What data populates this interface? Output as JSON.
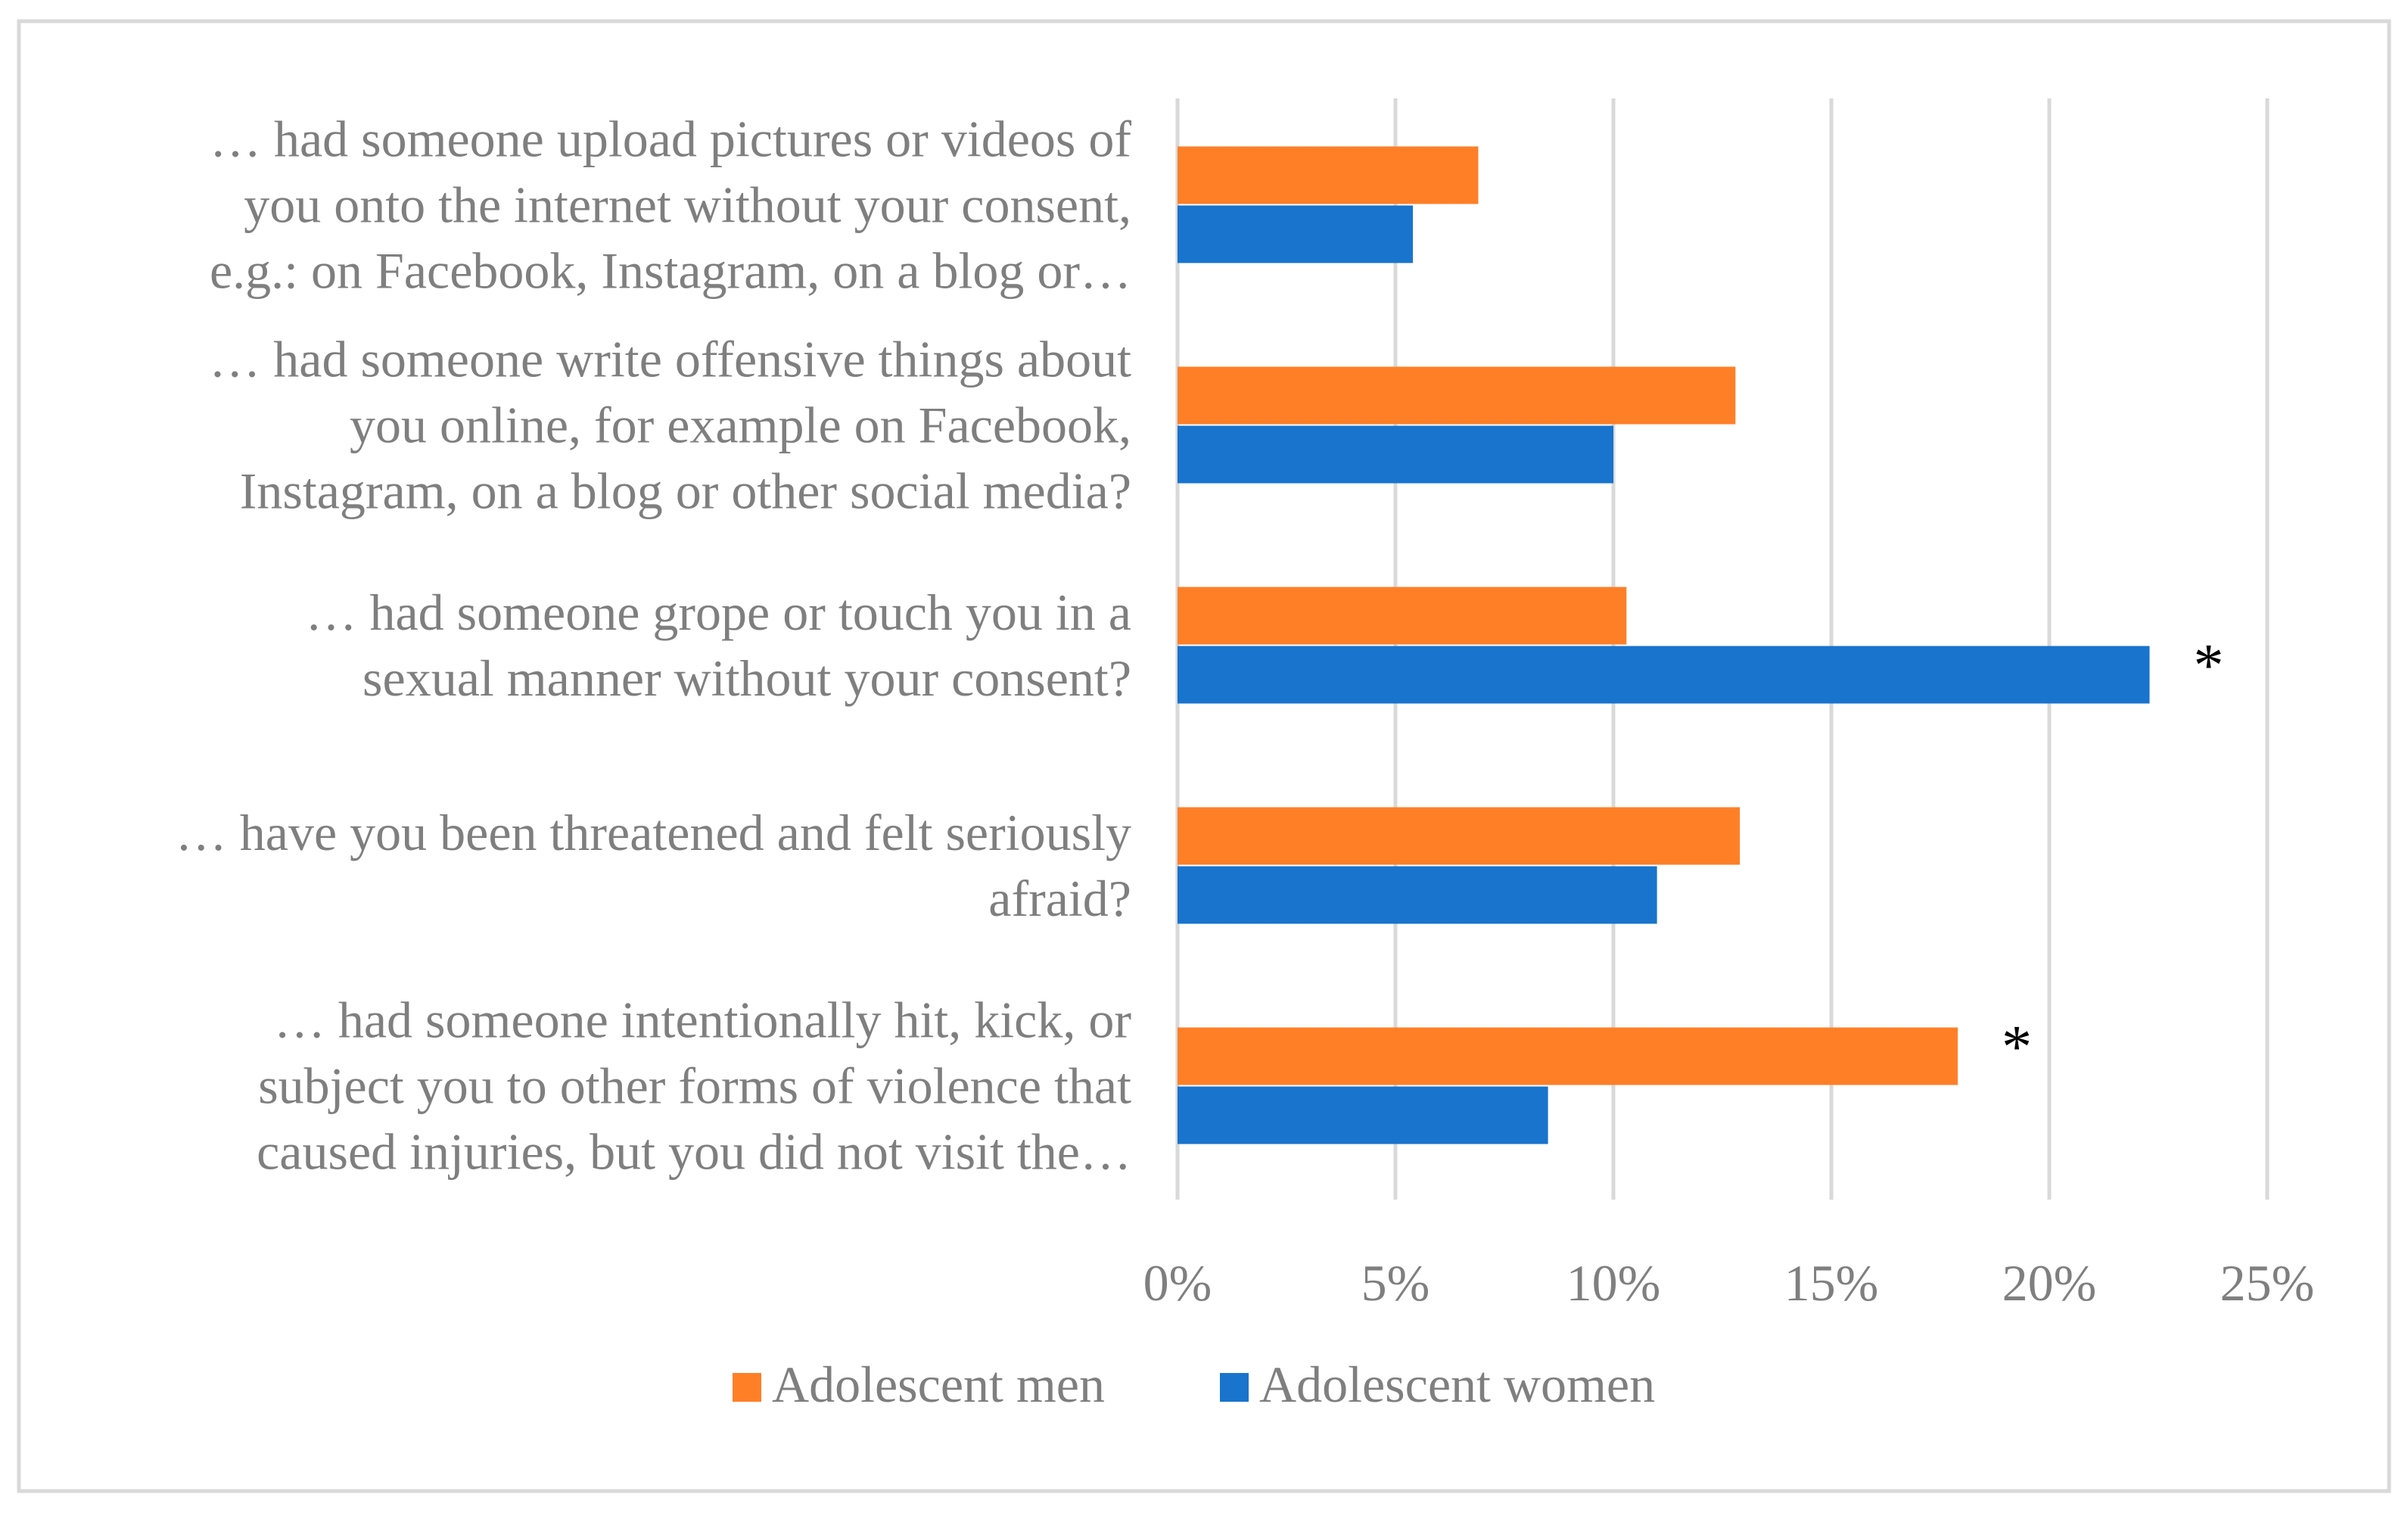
{
  "chart_data": {
    "type": "bar",
    "orientation": "horizontal",
    "title": "",
    "xlabel": "",
    "ylabel": "",
    "xlim": [
      0,
      25
    ],
    "x_ticks": [
      0,
      5,
      10,
      15,
      20,
      25
    ],
    "x_tick_labels": [
      "0%",
      "5%",
      "10%",
      "15%",
      "20%",
      "25%"
    ],
    "grid": true,
    "legend_position": "bottom",
    "categories": [
      {
        "lines": [
          "… had someone upload pictures or videos of",
          "you onto the internet without your consent,",
          "e.g.: on Facebook, Instagram, on a blog or…"
        ]
      },
      {
        "lines": [
          "… had someone write offensive things about",
          "you online, for example on Facebook,",
          "Instagram, on a blog or other social media?"
        ]
      },
      {
        "lines": [
          "… had someone grope or touch you in a",
          "sexual manner without your consent?"
        ]
      },
      {
        "lines": [
          "… have you been threatened and felt seriously",
          "afraid?"
        ]
      },
      {
        "lines": [
          "… had someone intentionally hit, kick, or",
          "subject you to other forms of violence that",
          "caused injuries, but you did not visit the…"
        ]
      }
    ],
    "series": [
      {
        "name": "Adolescent men",
        "color": "#FF7F27",
        "values": [
          6.9,
          12.8,
          10.3,
          12.9,
          17.9
        ]
      },
      {
        "name": "Adolescent women",
        "color": "#1874CD",
        "values": [
          5.4,
          10.0,
          22.3,
          11.0,
          8.5
        ]
      }
    ],
    "annotations": [
      {
        "text": "*",
        "category_index": 2,
        "series_index": 1
      },
      {
        "text": "*",
        "category_index": 4,
        "series_index": 0
      }
    ]
  }
}
